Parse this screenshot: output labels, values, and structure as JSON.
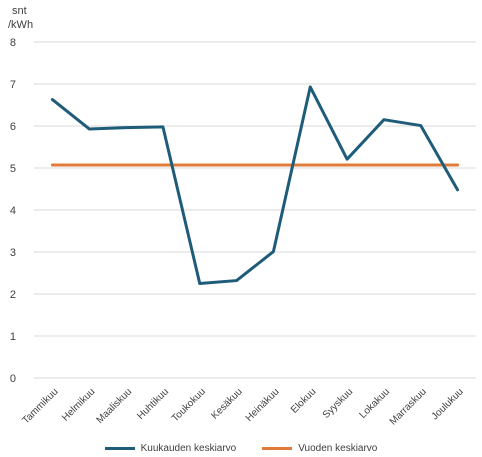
{
  "chart_data": {
    "type": "line",
    "ylabel_line1": "snt",
    "ylabel_line2": "/kWh",
    "categories": [
      "Tammikuu",
      "Helmikuu",
      "Maaliskuu",
      "Huhtikuu",
      "Toukokuu",
      "Kesäkuu",
      "Heinäkuu",
      "Elokuu",
      "Syyskuu",
      "Lokakuu",
      "Marraskuu",
      "Joulukuu"
    ],
    "ylim": [
      0,
      8
    ],
    "yticks": [
      "0",
      "1",
      "2",
      "3",
      "4",
      "5",
      "6",
      "7",
      "8"
    ],
    "grid": true,
    "legend_position": "bottom",
    "series": [
      {
        "name": "Kuukauden keskiarvo",
        "color": "#1f5c7a",
        "values": [
          6.63,
          5.93,
          5.96,
          5.98,
          2.25,
          2.32,
          3.01,
          6.93,
          5.21,
          6.15,
          6.01,
          4.48
        ]
      },
      {
        "name": "Vuoden keskiarvo",
        "color": "#e07b39",
        "values": [
          5.07,
          5.07,
          5.07,
          5.07,
          5.07,
          5.07,
          5.07,
          5.07,
          5.07,
          5.07,
          5.07,
          5.07
        ]
      }
    ]
  }
}
